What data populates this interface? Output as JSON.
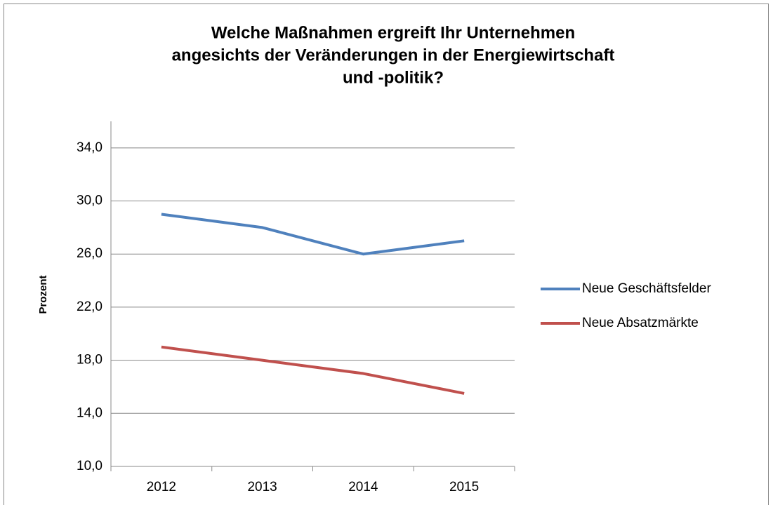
{
  "chart_data": {
    "type": "line",
    "title": [
      "Welche Maßnahmen ergreift Ihr Unternehmen",
      "angesichts der Veränderungen in der Energiewirtschaft",
      "und -politik?"
    ],
    "y_label": "Prozent",
    "categories": [
      "2012",
      "2013",
      "2014",
      "2015"
    ],
    "series": [
      {
        "name": "Neue Geschäftsfelder",
        "color": "#4f81bd",
        "values": [
          29,
          28,
          26,
          27
        ]
      },
      {
        "name": "Neue Absatzmärkte",
        "color": "#c0504d",
        "values": [
          19,
          18,
          17,
          15.5
        ]
      }
    ],
    "ylim": [
      10,
      36
    ],
    "yticks": [
      {
        "value": 10,
        "label": "10,0"
      },
      {
        "value": 14,
        "label": "14,0"
      },
      {
        "value": 18,
        "label": "18,0"
      },
      {
        "value": 22,
        "label": "22,0"
      },
      {
        "value": 26,
        "label": "26,0"
      },
      {
        "value": 30,
        "label": "30,0"
      },
      {
        "value": 34,
        "label": "34,0"
      }
    ],
    "grid": true,
    "legend": "right"
  }
}
